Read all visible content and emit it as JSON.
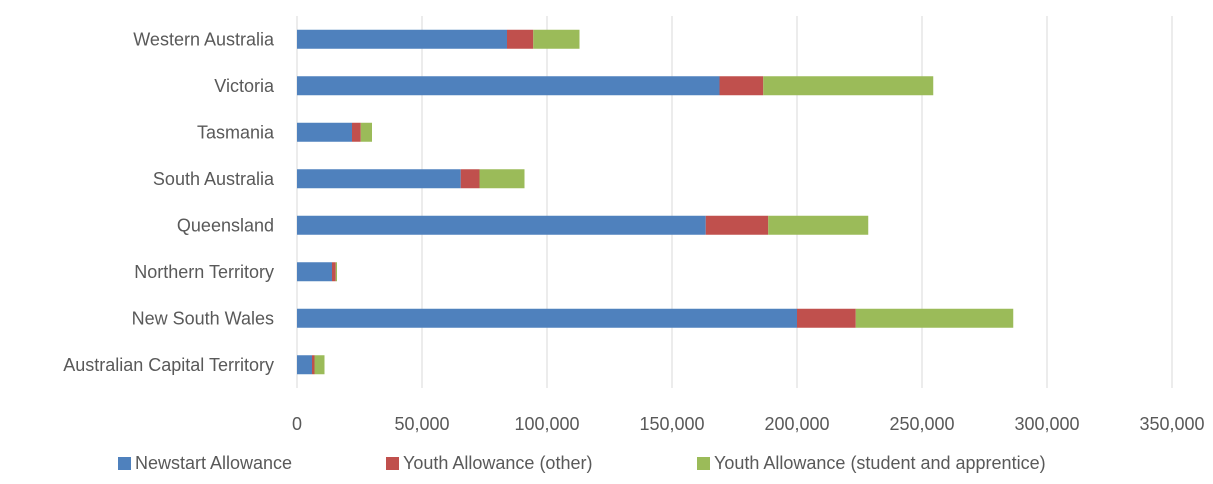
{
  "chart_data": {
    "type": "bar",
    "orientation": "horizontal",
    "stacked": true,
    "categories": [
      "Western Australia",
      "Victoria",
      "Tasmania",
      "South Australia",
      "Queensland",
      "Northern Territory",
      "New South Wales",
      "Australian Capital Territory"
    ],
    "series": [
      {
        "name": "Newstart Allowance",
        "color": "#4f81bd",
        "values": [
          84000,
          169000,
          22000,
          65500,
          163500,
          14000,
          200000,
          6000
        ]
      },
      {
        "name": "Youth Allowance (other)",
        "color": "#c0504d",
        "values": [
          10500,
          17500,
          3500,
          7500,
          25000,
          1500,
          23500,
          1000
        ]
      },
      {
        "name": "Youth Allowance (student and apprentice)",
        "color": "#9bbb59",
        "values": [
          18500,
          68000,
          4500,
          18000,
          40000,
          500,
          63000,
          4000
        ]
      }
    ],
    "x_ticks": [
      "0",
      "50,000",
      "100,000",
      "150,000",
      "200,000",
      "250,000",
      "300,000",
      "350,000"
    ],
    "xlim": [
      0,
      350000
    ],
    "grid": true,
    "legend_position": "bottom"
  }
}
